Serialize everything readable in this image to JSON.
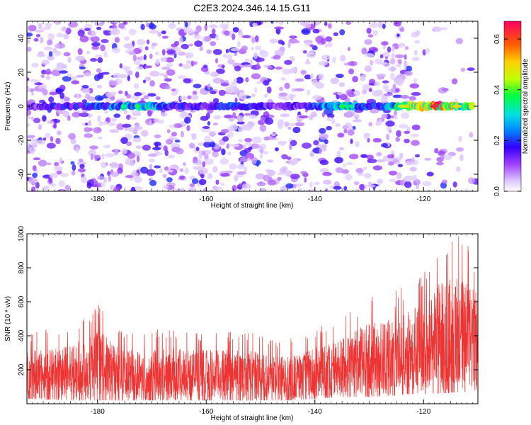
{
  "title": "C2E3.2024.346.14.15.G11",
  "chart_data": [
    {
      "type": "heatmap",
      "xlabel": "Height of straight line (km)",
      "ylabel": "Frequency (Hz)",
      "xlim": [
        -193,
        -110
      ],
      "ylim": [
        -50,
        50
      ],
      "xticks": [
        -180,
        -160,
        -140,
        -120
      ],
      "yticks": [
        -40,
        -20,
        0,
        20,
        40
      ],
      "colorbar": {
        "label": "Normalized spectral amplitude",
        "range": [
          0.0,
          0.67
        ],
        "ticks": [
          0.0,
          0.2,
          0.4,
          0.6
        ]
      },
      "ridge": {
        "frequency": 0,
        "description_values": [
          {
            "x": -185,
            "amp": 0.22
          },
          {
            "x": -178,
            "amp": 0.28
          },
          {
            "x": -172,
            "amp": 0.4
          },
          {
            "x": -166,
            "amp": 0.2
          },
          {
            "x": -160,
            "amp": 0.18
          },
          {
            "x": -155,
            "amp": 0.25
          },
          {
            "x": -145,
            "amp": 0.15
          },
          {
            "x": -135,
            "amp": 0.38
          },
          {
            "x": -128,
            "amp": 0.2
          },
          {
            "x": -123,
            "amp": 0.5
          },
          {
            "x": -117,
            "amp": 0.67
          },
          {
            "x": -113,
            "amp": 0.45
          }
        ]
      }
    },
    {
      "type": "line",
      "xlabel": "Height of straight line (km)",
      "ylabel": "SNR (10 * v/v)",
      "xlim": [
        -193,
        -110
      ],
      "ylim": [
        0,
        1000
      ],
      "xticks": [
        -180,
        -160,
        -140,
        -120
      ],
      "yticks": [
        200,
        400,
        600,
        800,
        1000
      ],
      "series": [
        {
          "color": "#ee3333",
          "envelope": [
            {
              "x": -193,
              "min": 30,
              "max": 420
            },
            {
              "x": -185,
              "min": 20,
              "max": 460
            },
            {
              "x": -180,
              "min": 20,
              "max": 590
            },
            {
              "x": -175,
              "min": 20,
              "max": 430
            },
            {
              "x": -170,
              "min": 20,
              "max": 440
            },
            {
              "x": -165,
              "min": 20,
              "max": 450
            },
            {
              "x": -160,
              "min": 20,
              "max": 430
            },
            {
              "x": -155,
              "min": 20,
              "max": 430
            },
            {
              "x": -150,
              "min": 20,
              "max": 420
            },
            {
              "x": -145,
              "min": 20,
              "max": 380
            },
            {
              "x": -140,
              "min": 30,
              "max": 440
            },
            {
              "x": -135,
              "min": 40,
              "max": 520
            },
            {
              "x": -130,
              "min": 40,
              "max": 640
            },
            {
              "x": -125,
              "min": 50,
              "max": 670
            },
            {
              "x": -120,
              "min": 60,
              "max": 800
            },
            {
              "x": -117,
              "min": 60,
              "max": 990
            },
            {
              "x": -113,
              "min": 70,
              "max": 990
            },
            {
              "x": -110,
              "min": 80,
              "max": 870
            }
          ]
        }
      ]
    }
  ]
}
